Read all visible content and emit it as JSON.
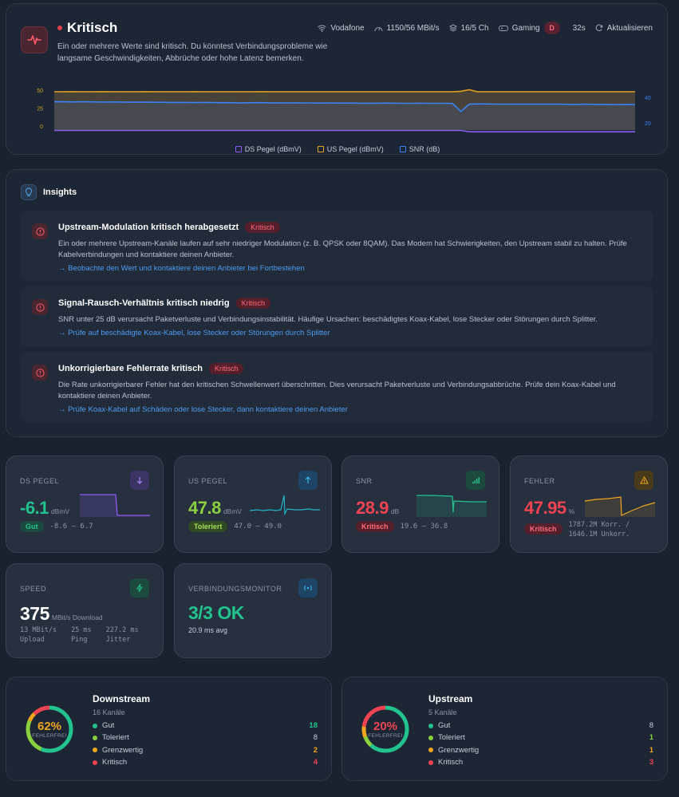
{
  "status": {
    "title": "Kritisch",
    "description": "Ein oder mehrere Werte sind kritisch. Du könntest Verbindungsprobleme wie langsame Geschwindigkeiten, Abbrüche oder hohe Latenz bemerken.",
    "provider": "Vodafone",
    "tariff": "1150/56 MBit/s",
    "channels": "16/5 Ch",
    "gaming_label": "Gaming",
    "gaming_grade": "D",
    "age": "32s",
    "refresh_label": "Aktualisieren"
  },
  "chart_data": {
    "type": "line",
    "left_axis_ticks": [
      "50",
      "25",
      "0"
    ],
    "right_axis_ticks": [
      "40",
      "20"
    ],
    "series": [
      {
        "name": "DS Pegel (dBmV)",
        "color": "#8b5cf6",
        "axis": "left",
        "values": [
          -6.1,
          -6.1,
          -6.1,
          -6.1,
          -6.1,
          -6.1,
          -6.1,
          -6.1,
          -6.1,
          -6.1,
          -6.1,
          -6.1,
          -6.1,
          -6.1,
          -6.1,
          -6.1,
          -6.1,
          -6.1,
          -6.1,
          -6.1,
          -6.1,
          -6.1,
          -6.1,
          -6.1,
          -6.1,
          -6.1,
          -6.1,
          -6.1,
          -6.1,
          -6.1,
          -6.1,
          -6.1,
          -6.1,
          -6.1,
          -6.1,
          -6.1,
          -6.1,
          -6.1,
          -6.1,
          -6.1,
          -6.1,
          -6.1,
          -6.1,
          -6.1,
          -6.1,
          -6.1,
          -6.1,
          -6.1,
          -6.1,
          -6.1,
          -8.0,
          -8.0,
          -8.0,
          -8.0,
          -8.0,
          -8.0,
          -8.0,
          -8.0,
          -8.0,
          -8.0,
          -8.0,
          -8.0,
          -8.0,
          -8.0,
          -8.0,
          -8.0,
          -8.0,
          -8.0,
          -8.0,
          -8.0,
          -8.0
        ]
      },
      {
        "name": "US Pegel (dBmV)",
        "color": "#e5a21f",
        "axis": "left",
        "values": [
          47.8,
          47.8,
          47.9,
          47.8,
          47.8,
          47.8,
          47.9,
          47.8,
          47.8,
          47.8,
          47.8,
          47.9,
          47.8,
          47.8,
          47.8,
          47.8,
          47.8,
          47.9,
          47.8,
          47.8,
          47.8,
          47.8,
          47.8,
          47.8,
          47.8,
          47.9,
          47.8,
          47.8,
          47.8,
          47.8,
          47.8,
          47.8,
          47.8,
          47.8,
          47.8,
          47.8,
          47.8,
          47.8,
          47.8,
          47.8,
          47.8,
          47.8,
          47.8,
          47.8,
          47.8,
          47.8,
          47.8,
          47.8,
          47.8,
          48.4,
          50.5,
          47.8,
          47.8,
          47.8,
          47.8,
          47.8,
          47.8,
          47.8,
          47.8,
          47.8,
          47.8,
          47.8,
          47.8,
          47.8,
          47.8,
          47.8,
          47.8,
          47.8,
          47.8,
          47.8,
          47.8
        ]
      },
      {
        "name": "SNR (dB)",
        "color": "#3b82f6",
        "axis": "right",
        "values": [
          36.5,
          36.6,
          36.4,
          36.5,
          36.5,
          36.4,
          36.3,
          36.4,
          36.3,
          36.2,
          36.2,
          36.2,
          36.1,
          36.1,
          36.0,
          36.0,
          36.0,
          35.9,
          36.0,
          35.9,
          35.8,
          35.8,
          35.7,
          35.7,
          35.8,
          35.8,
          35.7,
          35.7,
          35.6,
          35.7,
          35.6,
          35.6,
          35.5,
          35.6,
          35.5,
          35.5,
          35.5,
          35.4,
          35.4,
          35.4,
          35.5,
          35.4,
          35.3,
          35.3,
          35.4,
          35.3,
          35.3,
          35.3,
          35.2,
          28.9,
          34.6,
          34.8,
          34.8,
          34.7,
          34.7,
          34.7,
          34.6,
          34.6,
          34.7,
          34.6,
          34.6,
          34.6,
          34.5,
          34.5,
          34.6,
          34.5,
          34.5,
          34.4,
          34.4,
          34.5,
          34.4
        ]
      }
    ]
  },
  "insights": {
    "title": "Insights",
    "items": [
      {
        "title": "Upstream-Modulation kritisch herabgesetzt",
        "badge": "Kritisch",
        "body": "Ein oder mehrere Upstream-Kanäle laufen auf sehr niedriger Modulation (z. B. QPSK oder 8QAM). Das Modem hat Schwierigkeiten, den Upstream stabil zu halten. Prüfe Kabelverbindungen und kontaktiere deinen Anbieter.",
        "action": "→ Beobachte den Wert und kontaktiere deinen Anbieter bei Fortbestehen"
      },
      {
        "title": "Signal-Rausch-Verhältnis kritisch niedrig",
        "badge": "Kritisch",
        "body": "SNR unter 25 dB verursacht Paketverluste und Verbindungsinstabilität. Häufige Ursachen: beschädigtes Koax-Kabel, lose Stecker oder Störungen durch Splitter.",
        "action": "→ Prüfe auf beschädigte Koax-Kabel, lose Stecker oder Störungen durch Splitter"
      },
      {
        "title": "Unkorrigierbare Fehlerrate kritisch",
        "badge": "Kritisch",
        "body": "Die Rate unkorrigierbarer Fehler hat den kritischen Schwellenwert überschritten. Dies verursacht Paketverluste und Verbindungsabbrüche. Prüfe dein Koax-Kabel und kontaktiere deinen Anbieter.",
        "action": "→ Prüfe Koax-Kabel auf Schäden oder lose Stecker, dann kontaktiere deinen Anbieter"
      }
    ]
  },
  "metrics": {
    "ds": {
      "label": "DS PEGEL",
      "value": "-6.1",
      "unit": "dBmV",
      "status": "Gut",
      "range": "-8.6 – 6.7",
      "color": "#22c38e"
    },
    "us": {
      "label": "US PEGEL",
      "value": "47.8",
      "unit": "dBmV",
      "status": "Toleriert",
      "range": "47.0 – 49.0",
      "color": "#8bd13f"
    },
    "snr": {
      "label": "SNR",
      "value": "28.9",
      "unit": "dB",
      "status": "Kritisch",
      "range": "19.6 – 36.8",
      "color": "#ef4351"
    },
    "err": {
      "label": "FEHLER",
      "value": "47.95",
      "unit": "%",
      "status": "Kritisch",
      "detail_1": "1787.2M Korr. /",
      "detail_2": "1646.1M Unkorr.",
      "color": "#ef4351"
    }
  },
  "speed": {
    "label": "SPEED",
    "value": "375",
    "unit": "MBit/s Download",
    "upload_value": "13 MBit/s",
    "upload_label": "Upload",
    "ping_value": "25 ms",
    "ping_label": "Ping",
    "jitter_value": "227.2 ms",
    "jitter_label": "Jitter"
  },
  "monitor": {
    "label": "VERBINDUNGSMONITOR",
    "value": "3/3 OK",
    "avg": "20.9 ms avg"
  },
  "downstream": {
    "title": "Downstream",
    "count": "16 Kanäle",
    "percent": "62%",
    "percent_value": 62,
    "percent_label": "FEHLERFREI",
    "rows": [
      {
        "label": "Gut",
        "value": "18",
        "color": "#22c38e"
      },
      {
        "label": "Toleriert",
        "value": "8",
        "color": "#8bd13f"
      },
      {
        "label": "Grenzwertig",
        "value": "2",
        "color": "#f0a61f"
      },
      {
        "label": "Kritisch",
        "value": "4",
        "color": "#ef4351"
      }
    ]
  },
  "upstream": {
    "title": "Upstream",
    "count": "5 Kanäle",
    "percent": "20%",
    "percent_value": 20,
    "percent_label": "FEHLERFREI",
    "rows": [
      {
        "label": "Gut",
        "value": "8",
        "color": "#22c38e"
      },
      {
        "label": "Toleriert",
        "value": "1",
        "color": "#8bd13f"
      },
      {
        "label": "Grenzwertig",
        "value": "1",
        "color": "#f0a61f"
      },
      {
        "label": "Kritisch",
        "value": "3",
        "color": "#ef4351"
      }
    ]
  }
}
